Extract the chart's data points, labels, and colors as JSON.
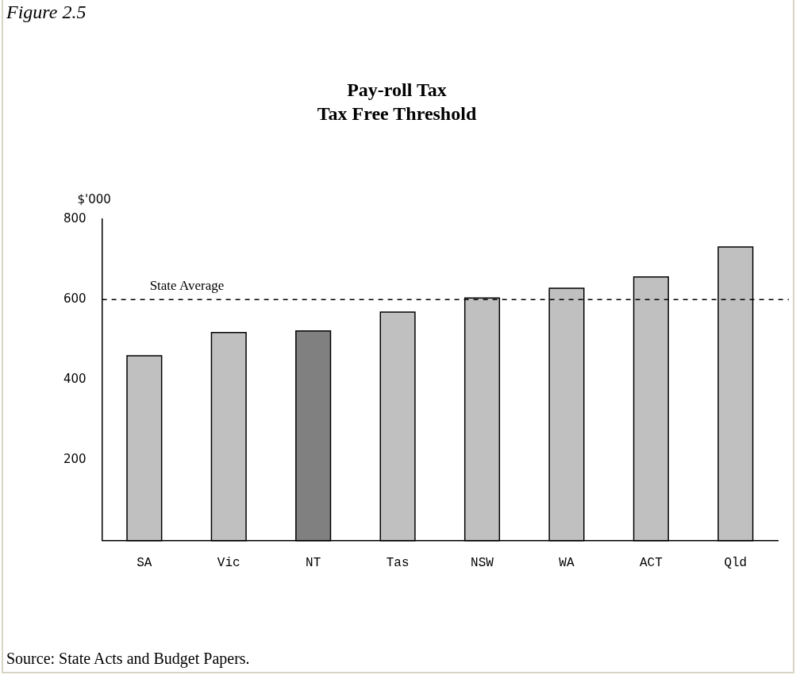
{
  "chart_data": {
    "type": "bar",
    "title": "Pay-roll Tax",
    "subtitle": "Tax Free Threshold",
    "ylabel": "$'000",
    "categories": [
      "SA",
      "Vic",
      "NT",
      "Tas",
      "NSW",
      "WA",
      "ACT",
      "Qld"
    ],
    "values": [
      460,
      518,
      522,
      569,
      604,
      628,
      656,
      731
    ],
    "colors": [
      "#c0c0c0",
      "#c0c0c0",
      "#808080",
      "#c0c0c0",
      "#c0c0c0",
      "#c0c0c0",
      "#c0c0c0",
      "#c0c0c0"
    ],
    "ylim": [
      0,
      800
    ],
    "yticks": [
      200,
      400,
      600,
      800
    ],
    "grid": false,
    "legend": false,
    "ref_lines": [
      {
        "axis": "y",
        "value": 600,
        "label": "State Average",
        "line_style": "dashed"
      }
    ],
    "annotations": [
      "Figure 2.5",
      "Source: State Acts and Budget Papers."
    ]
  }
}
